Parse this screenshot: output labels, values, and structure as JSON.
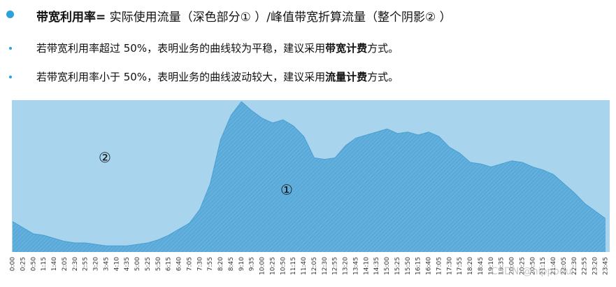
{
  "bullets": [
    {
      "parts": [
        {
          "text": "带宽利用率=",
          "bold": true
        },
        {
          "text": " 实际使用流量（深色部分①  ）/峰值带宽折算流量（整个阴影②  ）",
          "bold": false
        }
      ]
    },
    {
      "parts": [
        {
          "text": "若带宽利用率超过 50%，表明业务的曲线较为平稳，建议采用",
          "bold": false
        },
        {
          "text": "带宽计费",
          "bold": true
        },
        {
          "text": "方式。",
          "bold": false
        }
      ]
    },
    {
      "parts": [
        {
          "text": "若带宽利用率小于 50%，表明业务的曲线波动较大，建议采用",
          "bold": false
        },
        {
          "text": "流量计费",
          "bold": true
        },
        {
          "text": "方式。",
          "bold": false
        }
      ]
    }
  ],
  "chart_data": {
    "type": "area",
    "annotations": [
      "②",
      "①"
    ],
    "watermark": "CSDN @hippodu",
    "color": "#5aaad9",
    "background": "#a8d4ee",
    "ylim": [
      0,
      100
    ],
    "categories": [
      "0:00",
      "0:25",
      "0:50",
      "1:15",
      "1:40",
      "2:05",
      "2:30",
      "2:55",
      "3:20",
      "3:45",
      "4:10",
      "4:35",
      "5:00",
      "5:25",
      "5:50",
      "6:15",
      "6:40",
      "7:05",
      "7:30",
      "7:55",
      "8:20",
      "8:45",
      "9:10",
      "9:35",
      "10:00",
      "10:25",
      "10:50",
      "11:15",
      "11:40",
      "12:05",
      "12:30",
      "12:55",
      "13:20",
      "13:45",
      "14:10",
      "14:35",
      "15:00",
      "15:25",
      "15:50",
      "16:15",
      "16:40",
      "17:05",
      "17:30",
      "17:55",
      "18:20",
      "18:45",
      "19:10",
      "19:35",
      "20:00",
      "20:25",
      "20:50",
      "21:15",
      "21:40",
      "22:05",
      "22:30",
      "22:55",
      "23:20",
      "23:45"
    ],
    "values": [
      20,
      16,
      12,
      11,
      9,
      7,
      6,
      6,
      5,
      4,
      4,
      4,
      5,
      6,
      8,
      11,
      15,
      19,
      28,
      45,
      74,
      90,
      99,
      93,
      88,
      85,
      87,
      83,
      76,
      62,
      61,
      62,
      70,
      75,
      77,
      79,
      81,
      78,
      79,
      77,
      79,
      76,
      69,
      65,
      59,
      58,
      56,
      58,
      60,
      59,
      56,
      54,
      51,
      45,
      39,
      32,
      27,
      22
    ]
  }
}
